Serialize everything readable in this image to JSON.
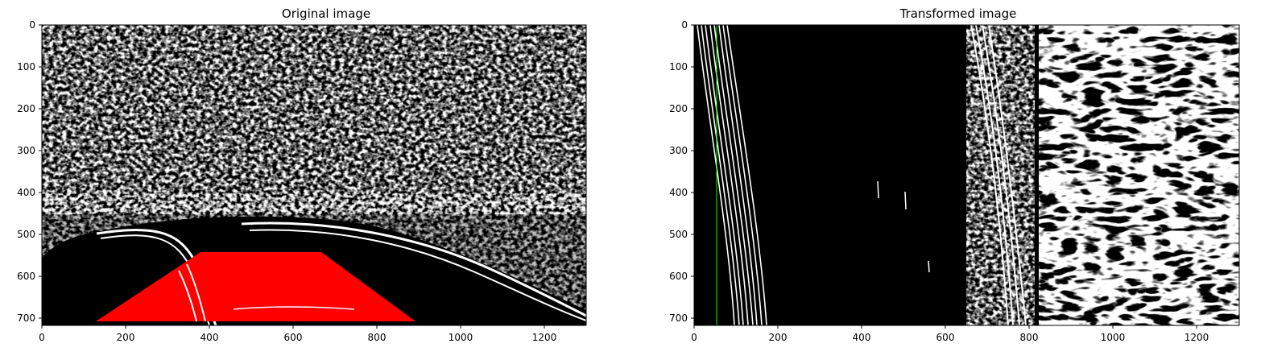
{
  "panels": [
    {
      "title": "Original image",
      "x_ticks": [
        "0",
        "200",
        "400",
        "600",
        "800",
        "1000",
        "1200"
      ],
      "y_ticks": [
        "0",
        "100",
        "200",
        "300",
        "400",
        "500",
        "600",
        "700"
      ],
      "x_range": [
        0,
        1300
      ],
      "y_range": [
        720,
        0
      ],
      "overlay_color": "#ff0000",
      "overlay_region": [
        [
          130,
          715
        ],
        [
          380,
          545
        ],
        [
          670,
          545
        ],
        [
          900,
          715
        ]
      ]
    },
    {
      "title": "Transformed image",
      "x_ticks": [
        "0",
        "200",
        "400",
        "600",
        "800",
        "1000",
        "1200"
      ],
      "y_ticks": [
        "0",
        "100",
        "200",
        "300",
        "400",
        "500",
        "600",
        "700"
      ],
      "x_range": [
        0,
        1300
      ],
      "y_range": [
        720,
        0
      ],
      "guide_line_color": "#00ff00",
      "guide_line_x": 52
    }
  ]
}
